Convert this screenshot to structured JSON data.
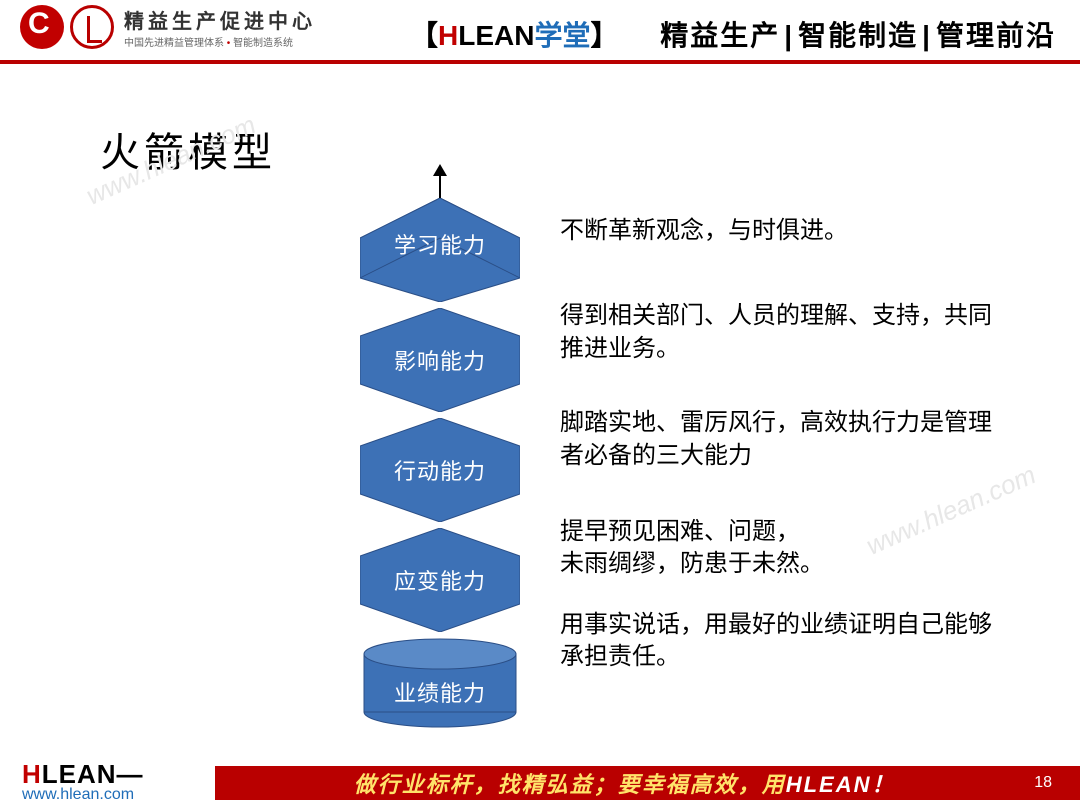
{
  "header": {
    "org_cn": "精益生产促进中心",
    "org_sub_a": "中国先进精益管理体系",
    "org_sub_b": "智能制造系统",
    "brand_bracket_l": "【",
    "brand_bracket_r": "】",
    "brand_h": "H",
    "brand_lean": "LEAN",
    "brand_xue": "学堂",
    "right_a": "精益生产",
    "right_b": "智能制造",
    "right_c": "管理前沿"
  },
  "slide_title": "火箭模型",
  "diagram": {
    "type": "rocket-chevron-stack",
    "chevron_fill": "#3d71b6",
    "chevron_stroke": "#2a4e86",
    "cylinder_fill": "#3d71b6",
    "cylinder_stroke": "#2a4e86",
    "label_color": "#ffffff",
    "label_fontsize": 22,
    "chevron_width": 160,
    "chevron_height": 76,
    "chevron_gap": 34,
    "cylinder_width": 156,
    "cylinder_height": 84,
    "items": [
      {
        "label": "学习能力",
        "desc": "不断革新观念，与时俱进。"
      },
      {
        "label": "影响能力",
        "desc": "得到相关部门、人员的理解、支持，共同推进业务。"
      },
      {
        "label": "行动能力",
        "desc": "脚踏实地、雷厉风行，高效执行力是管理者必备的三大能力"
      },
      {
        "label": "应变能力",
        "desc": "提早预见困难、问题，\n未雨绸缪，防患于未然。"
      },
      {
        "label": "业绩能力",
        "desc": "用事实说话，用最好的业绩证明自己能够承担责任。"
      }
    ],
    "desc_fontsize": 24,
    "desc_color": "#000000"
  },
  "watermark": "www.hlean.com",
  "footer": {
    "logo_h": "H",
    "logo_lean": "LEAN—",
    "url": "www.hlean.com",
    "slogan_a": "做行业标杆，找精弘益；要幸福高效，用",
    "slogan_b": "HLEAN！",
    "page": "18",
    "bar_color": "#b90000",
    "slogan_color": "#ffe36a"
  }
}
